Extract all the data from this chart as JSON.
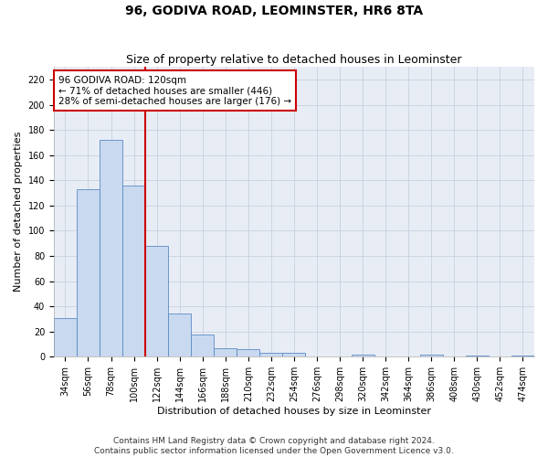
{
  "title": "96, GODIVA ROAD, LEOMINSTER, HR6 8TA",
  "subtitle": "Size of property relative to detached houses in Leominster",
  "xlabel": "Distribution of detached houses by size in Leominster",
  "ylabel": "Number of detached properties",
  "bin_labels": [
    "34sqm",
    "56sqm",
    "78sqm",
    "100sqm",
    "122sqm",
    "144sqm",
    "166sqm",
    "188sqm",
    "210sqm",
    "232sqm",
    "254sqm",
    "276sqm",
    "298sqm",
    "320sqm",
    "342sqm",
    "364sqm",
    "386sqm",
    "408sqm",
    "430sqm",
    "452sqm",
    "474sqm"
  ],
  "bar_heights": [
    31,
    133,
    172,
    136,
    88,
    34,
    18,
    7,
    6,
    3,
    3,
    0,
    0,
    2,
    0,
    0,
    2,
    0,
    1,
    0,
    1
  ],
  "bar_color": "#c9d9ef",
  "bar_edge_color": "#5b8ac5",
  "property_line_color": "#cc0000",
  "annotation_text": "96 GODIVA ROAD: 120sqm\n← 71% of detached houses are smaller (446)\n28% of semi-detached houses are larger (176) →",
  "annotation_box_color": "#cc0000",
  "ylim": [
    0,
    230
  ],
  "yticks": [
    0,
    20,
    40,
    60,
    80,
    100,
    120,
    140,
    160,
    180,
    200,
    220
  ],
  "grid_color": "#c8d0e0",
  "bg_color": "#e8edf5",
  "footer_text": "Contains HM Land Registry data © Crown copyright and database right 2024.\nContains public sector information licensed under the Open Government Licence v3.0.",
  "title_fontsize": 10,
  "subtitle_fontsize": 9,
  "label_fontsize": 8,
  "tick_fontsize": 7,
  "footer_fontsize": 6.5,
  "red_line_x": 3.5
}
